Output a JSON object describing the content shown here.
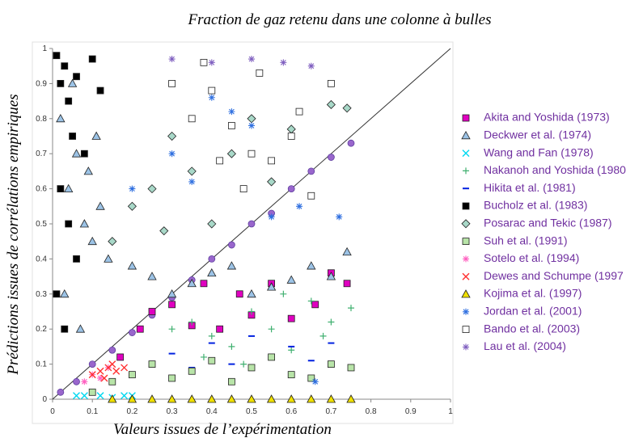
{
  "chart_data": {
    "type": "scatter",
    "title": "Fraction de gaz retenu dans une colonne à bulles",
    "x_label": "Valeurs issues de l’expérimentation",
    "y_label": "Prédictions issues de corrélations empiriques",
    "xlim": [
      0,
      1
    ],
    "ylim": [
      0,
      1
    ],
    "xticks": [
      0,
      0.1,
      0.2,
      0.3,
      0.4,
      0.5,
      0.6,
      0.7,
      0.8,
      0.9,
      1
    ],
    "yticks": [
      0,
      0.1,
      0.2,
      0.3,
      0.4,
      0.5,
      0.6,
      0.7,
      0.8,
      0.9,
      1
    ],
    "diagonal": true,
    "legend": "right",
    "series": [
      {
        "color": "#9966cc",
        "marker": "circle",
        "x": [
          0.02,
          0.06,
          0.1,
          0.15,
          0.2,
          0.25,
          0.3,
          0.35,
          0.4,
          0.45,
          0.5,
          0.55,
          0.6,
          0.65,
          0.7,
          0.75
        ],
        "values": [
          0.02,
          0.05,
          0.1,
          0.14,
          0.19,
          0.24,
          0.29,
          0.34,
          0.4,
          0.44,
          0.5,
          0.53,
          0.6,
          0.65,
          0.69,
          0.73
        ]
      },
      {
        "name": "Akita and Yoshida (1973)",
        "color": "#e000c0",
        "marker": "square",
        "x": [
          0.17,
          0.22,
          0.25,
          0.3,
          0.35,
          0.38,
          0.42,
          0.47,
          0.5,
          0.55,
          0.6,
          0.66,
          0.7,
          0.74
        ],
        "values": [
          0.12,
          0.2,
          0.25,
          0.27,
          0.21,
          0.33,
          0.2,
          0.3,
          0.24,
          0.33,
          0.23,
          0.27,
          0.36,
          0.33
        ]
      },
      {
        "name": "Deckwer et al. (1974)",
        "color": "#9cc3e6",
        "marker": "triangle",
        "x": [
          0.02,
          0.04,
          0.06,
          0.08,
          0.1,
          0.12,
          0.05,
          0.09,
          0.14,
          0.2,
          0.25,
          0.3,
          0.35,
          0.4,
          0.45,
          0.5,
          0.55,
          0.6,
          0.65,
          0.7,
          0.74,
          0.03,
          0.07,
          0.11
        ],
        "values": [
          0.8,
          0.6,
          0.7,
          0.5,
          0.45,
          0.55,
          0.9,
          0.65,
          0.4,
          0.38,
          0.35,
          0.3,
          0.33,
          0.36,
          0.38,
          0.3,
          0.32,
          0.34,
          0.38,
          0.35,
          0.42,
          0.3,
          0.2,
          0.75
        ]
      },
      {
        "name": "Wang and Fan (1978)",
        "color": "#00d8f0",
        "marker": "x",
        "x": [
          0.06,
          0.08,
          0.1,
          0.12,
          0.15,
          0.18,
          0.2
        ],
        "values": [
          0.01,
          0.01,
          0.02,
          0.01,
          0.005,
          0.01,
          0.01
        ]
      },
      {
        "name": "Nakanoh and Yoshida (1980",
        "color": "#40b070",
        "marker": "plus",
        "x": [
          0.3,
          0.35,
          0.4,
          0.45,
          0.5,
          0.55,
          0.6,
          0.65,
          0.7,
          0.75,
          0.38,
          0.48,
          0.58,
          0.68
        ],
        "values": [
          0.2,
          0.22,
          0.18,
          0.15,
          0.25,
          0.2,
          0.14,
          0.28,
          0.22,
          0.26,
          0.12,
          0.1,
          0.3,
          0.18
        ]
      },
      {
        "name": "Hikita et al. (1981)",
        "color": "#0020e0",
        "marker": "dash",
        "x": [
          0.3,
          0.35,
          0.4,
          0.45,
          0.5,
          0.55,
          0.6,
          0.65,
          0.7
        ],
        "values": [
          0.13,
          0.09,
          0.16,
          0.1,
          0.18,
          0.12,
          0.15,
          0.11,
          0.16
        ]
      },
      {
        "name": "Bucholz et al. (1983)",
        "color": "#000000",
        "marker": "square",
        "x": [
          0.01,
          0.02,
          0.03,
          0.04,
          0.05,
          0.06,
          0.08,
          0.1,
          0.02,
          0.04,
          0.06,
          0.01,
          0.03,
          0.12
        ],
        "values": [
          0.98,
          0.9,
          0.95,
          0.85,
          0.75,
          0.92,
          0.7,
          0.97,
          0.6,
          0.5,
          0.4,
          0.3,
          0.2,
          0.88
        ]
      },
      {
        "name": "Posarac and Tekic (1987)",
        "color": "#a8d8c8",
        "marker": "diamond",
        "x": [
          0.2,
          0.25,
          0.3,
          0.35,
          0.4,
          0.45,
          0.5,
          0.55,
          0.6,
          0.7,
          0.74,
          0.15,
          0.28
        ],
        "values": [
          0.55,
          0.6,
          0.75,
          0.65,
          0.5,
          0.7,
          0.8,
          0.62,
          0.77,
          0.84,
          0.83,
          0.45,
          0.48
        ]
      },
      {
        "name": "Suh et al. (1991)",
        "color": "#b8e4a8",
        "marker": "square",
        "x": [
          0.1,
          0.15,
          0.2,
          0.25,
          0.3,
          0.35,
          0.4,
          0.45,
          0.5,
          0.55,
          0.6,
          0.65,
          0.7,
          0.75
        ],
        "values": [
          0.02,
          0.05,
          0.07,
          0.1,
          0.06,
          0.08,
          0.11,
          0.05,
          0.09,
          0.12,
          0.07,
          0.06,
          0.1,
          0.09
        ]
      },
      {
        "name": "Sotelo et al. (1994)",
        "color": "#ff60c0",
        "marker": "asterisk",
        "x": [
          0.08,
          0.1,
          0.12,
          0.14
        ],
        "values": [
          0.05,
          0.07,
          0.06,
          0.09
        ]
      },
      {
        "name": "Dewes and Schumpe (1997",
        "color": "#ff3030",
        "marker": "x",
        "x": [
          0.1,
          0.12,
          0.14,
          0.15,
          0.16,
          0.18,
          0.13
        ],
        "values": [
          0.07,
          0.08,
          0.09,
          0.1,
          0.08,
          0.09,
          0.06
        ]
      },
      {
        "name": "Kojima et al. (1997)",
        "color": "#f0e000",
        "marker": "triangle",
        "x": [
          0.15,
          0.2,
          0.25,
          0.3,
          0.35,
          0.4,
          0.45,
          0.5,
          0.55,
          0.6,
          0.65,
          0.7,
          0.75
        ],
        "values": [
          0,
          0,
          0,
          0,
          0,
          0,
          0,
          0,
          0,
          0,
          0,
          0,
          0
        ]
      },
      {
        "name": "Jordan et al. (2001)",
        "color": "#3070e0",
        "marker": "asterisk",
        "x": [
          0.2,
          0.3,
          0.35,
          0.4,
          0.45,
          0.5,
          0.55,
          0.62,
          0.66,
          0.72
        ],
        "values": [
          0.6,
          0.7,
          0.62,
          0.86,
          0.82,
          0.78,
          0.52,
          0.55,
          0.05,
          0.52
        ]
      },
      {
        "name": "Bando et al. (2003)",
        "color": "#ffffff",
        "marker": "square",
        "x": [
          0.3,
          0.35,
          0.4,
          0.45,
          0.5,
          0.55,
          0.6,
          0.65,
          0.7,
          0.42,
          0.52,
          0.62,
          0.38,
          0.48
        ],
        "values": [
          0.9,
          0.8,
          0.88,
          0.78,
          0.7,
          0.68,
          0.75,
          0.58,
          0.9,
          0.68,
          0.93,
          0.82,
          0.96,
          0.6
        ]
      },
      {
        "name": "Lau et al. (2004)",
        "color": "#8060c0",
        "marker": "asterisk",
        "x": [
          0.3,
          0.4,
          0.5,
          0.58,
          0.65
        ],
        "values": [
          0.97,
          0.96,
          0.97,
          0.96,
          0.95
        ]
      }
    ]
  }
}
